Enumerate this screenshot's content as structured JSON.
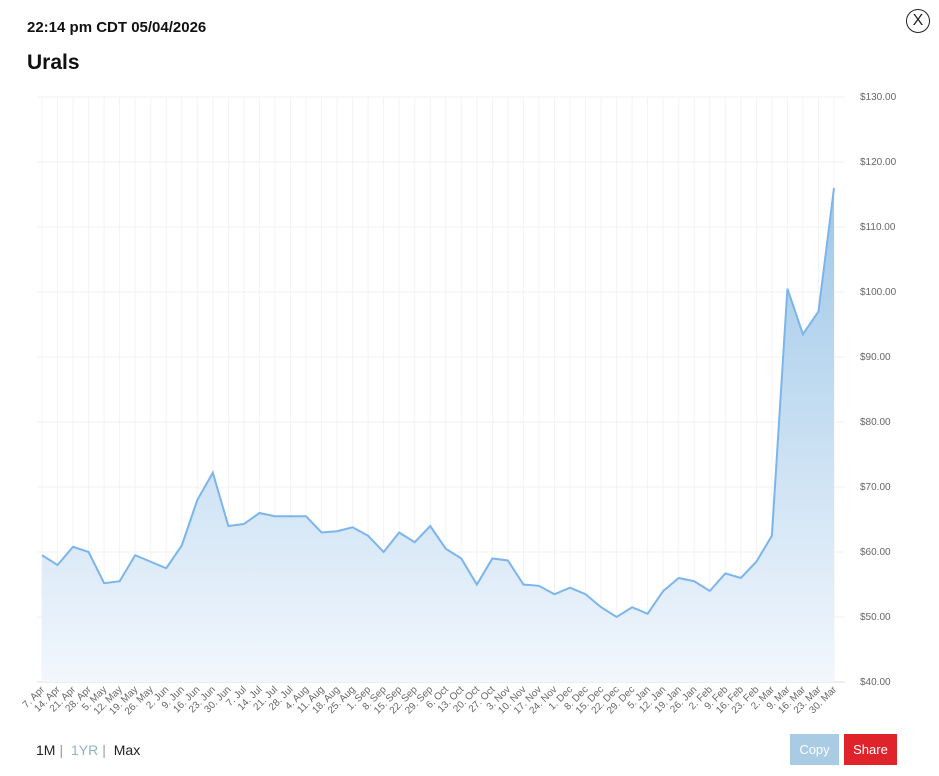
{
  "header": {
    "timestamp": "22:14 pm CDT 05/04/2026",
    "close": "X"
  },
  "chart_data": {
    "type": "area",
    "title": "Urals",
    "categories": [
      "7. Apr",
      "14. Apr",
      "21. Apr",
      "28. Apr",
      "5. May",
      "12. May",
      "19. May",
      "26. May",
      "2. Jun",
      "9. Jun",
      "16. Jun",
      "23. Jun",
      "30. Jun",
      "7. Jul",
      "14. Jul",
      "21. Jul",
      "28. Jul",
      "4. Aug",
      "11. Aug",
      "18. Aug",
      "25. Aug",
      "1. Sep",
      "8. Sep",
      "15. Sep",
      "22. Sep",
      "29. Sep",
      "6. Oct",
      "13. Oct",
      "20. Oct",
      "27. Oct",
      "3. Nov",
      "10. Nov",
      "17. Nov",
      "24. Nov",
      "1. Dec",
      "8. Dec",
      "15. Dec",
      "22. Dec",
      "29. Dec",
      "5. Jan",
      "12. Jan",
      "19. Jan",
      "26. Jan",
      "2. Feb",
      "9. Feb",
      "16. Feb",
      "23. Feb",
      "2. Mar",
      "9. Mar",
      "16. Mar",
      "23. Mar",
      "30. Mar"
    ],
    "values": [
      59.5,
      58,
      60.8,
      60,
      55.2,
      55.5,
      59.5,
      58.5,
      57.5,
      61,
      68,
      72.2,
      64,
      64.3,
      66,
      65.5,
      65.5,
      65.5,
      63,
      63.2,
      63.8,
      62.5,
      60,
      63,
      61.5,
      64,
      60.5,
      59,
      55,
      59,
      58.7,
      55,
      54.8,
      53.5,
      54.5,
      53.5,
      51.5,
      50,
      51.5,
      50.5,
      54,
      56,
      55.5,
      54,
      56.7,
      56,
      58.5,
      62.5,
      100.5,
      93.5,
      97,
      116
    ],
    "color": "#7cb5ec",
    "ylim": [
      40,
      130
    ],
    "yticks": [
      {
        "value": 40,
        "label": "$40.00"
      },
      {
        "value": 50,
        "label": "$50.00"
      },
      {
        "value": 60,
        "label": "$60.00"
      },
      {
        "value": 70,
        "label": "$70.00"
      },
      {
        "value": 80,
        "label": "$80.00"
      },
      {
        "value": 90,
        "label": "$90.00"
      },
      {
        "value": 100,
        "label": "$100.00"
      },
      {
        "value": 110,
        "label": "$110.00"
      },
      {
        "value": 120,
        "label": "$120.00"
      },
      {
        "value": 130,
        "label": "$130.00"
      }
    ],
    "grid": true
  },
  "controls": {
    "ranges": [
      "1M",
      "1YR",
      "Max"
    ],
    "separator": "|",
    "copy": "Copy",
    "share": "Share"
  }
}
